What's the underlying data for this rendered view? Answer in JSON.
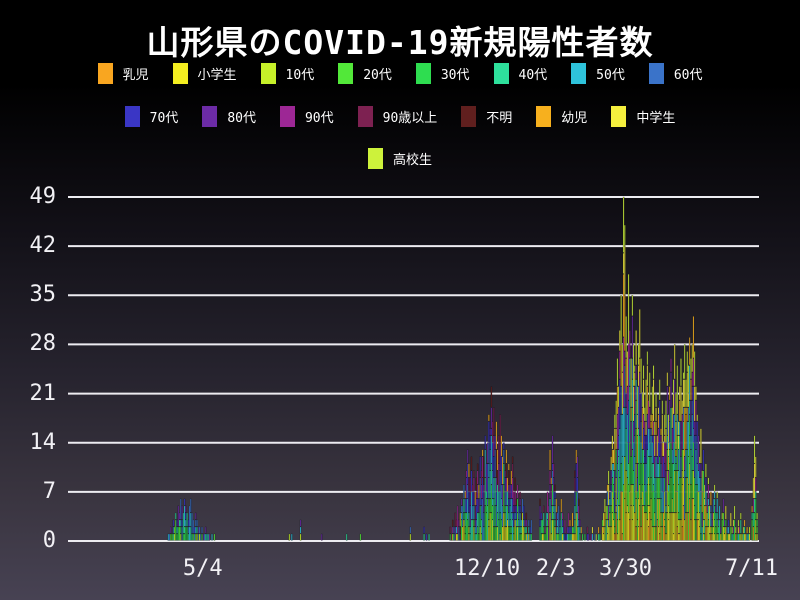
{
  "title": "山形県のCOVID-19新規陽性者数",
  "legend": {
    "rows": [
      [
        {
          "label": "乳児",
          "color": "#F9A620"
        },
        {
          "label": "小学生",
          "color": "#F4EE20"
        },
        {
          "label": "10代",
          "color": "#C6F029"
        },
        {
          "label": "20代",
          "color": "#52E839"
        },
        {
          "label": "30代",
          "color": "#2EDD50"
        },
        {
          "label": "40代",
          "color": "#2EE09C"
        },
        {
          "label": "50代",
          "color": "#2EC3DB"
        },
        {
          "label": "60代",
          "color": "#3A73C9"
        }
      ],
      [
        {
          "label": "70代",
          "color": "#3A36C5"
        },
        {
          "label": "80代",
          "color": "#6C2BA6"
        },
        {
          "label": "90代",
          "color": "#9D2795"
        },
        {
          "label": "90歳以上",
          "color": "#7D2151"
        },
        {
          "label": "不明",
          "color": "#601F1E"
        },
        {
          "label": "幼児",
          "color": "#F7B01E"
        },
        {
          "label": "中学生",
          "color": "#F5EF3E"
        }
      ],
      [
        {
          "label": "高校生",
          "color": "#CDF23B"
        }
      ]
    ]
  },
  "chart_data": {
    "type": "bar",
    "stacked": true,
    "title": "山形県のCOVID-19新規陽性者数",
    "xlabel": "",
    "ylabel": "",
    "grid": true,
    "legend_position": "top",
    "yticks": [
      0,
      7,
      14,
      21,
      28,
      35,
      42,
      49
    ],
    "ylim": [
      0,
      49
    ],
    "categories_are_stack_series": [
      "乳児",
      "小学生",
      "10代",
      "20代",
      "30代",
      "40代",
      "50代",
      "60代",
      "70代",
      "80代",
      "90代",
      "90歳以上",
      "不明",
      "幼児",
      "中学生",
      "高校生"
    ],
    "x_axis": {
      "unit": "day",
      "days_total": 554,
      "tick_labels": [
        "5/4",
        "12/10",
        "2/3",
        "3/30",
        "7/11"
      ],
      "tick_day_index": [
        108,
        336,
        391,
        447,
        548
      ]
    },
    "daily_total_clusters": [
      {
        "start_day": 80,
        "values": [
          1,
          1,
          2,
          1,
          3,
          2,
          4,
          3,
          5,
          4,
          6,
          5,
          4,
          6,
          5,
          4,
          3,
          5,
          6,
          4,
          3,
          2,
          4,
          3,
          2,
          2,
          1,
          2,
          1,
          1,
          2,
          1,
          1,
          1,
          0,
          1,
          0,
          1
        ]
      },
      {
        "start_day": 177,
        "values": [
          1,
          0,
          1
        ]
      },
      {
        "start_day": 186,
        "values": [
          3
        ]
      },
      {
        "start_day": 203,
        "values": [
          1
        ]
      },
      {
        "start_day": 223,
        "values": [
          1
        ]
      },
      {
        "start_day": 234,
        "values": [
          1
        ]
      },
      {
        "start_day": 274,
        "values": [
          2
        ]
      },
      {
        "start_day": 285,
        "values": [
          2,
          0,
          1,
          0,
          1
        ]
      },
      {
        "start_day": 306,
        "values": [
          2,
          1,
          3,
          2,
          4,
          3,
          5,
          3,
          4,
          6,
          5,
          8,
          7,
          10,
          13,
          11,
          9,
          12,
          8,
          10,
          7,
          9,
          11,
          8,
          12,
          10,
          13,
          12,
          15,
          11,
          14,
          18,
          16,
          22,
          17,
          19,
          15,
          17,
          13,
          15,
          18,
          15,
          12,
          14,
          10,
          13,
          9,
          11,
          8,
          10,
          12,
          7,
          9,
          6,
          8,
          5,
          7,
          4,
          6,
          5,
          3,
          4,
          2,
          3,
          2,
          3
        ]
      },
      {
        "start_day": 378,
        "values": [
          6,
          4,
          3,
          5,
          2,
          4,
          7,
          5,
          13,
          9,
          15,
          11,
          8,
          6,
          4,
          5,
          3,
          6,
          4,
          2,
          3,
          1,
          2,
          4,
          3,
          2,
          4,
          2,
          10,
          13,
          12,
          6,
          3,
          2,
          1
        ]
      },
      {
        "start_day": 414,
        "values": [
          1,
          0,
          2,
          1,
          0,
          1,
          2,
          0,
          1,
          1,
          0,
          2,
          1
        ]
      },
      {
        "start_day": 428,
        "values": [
          3,
          4,
          6,
          5,
          8,
          10,
          7,
          12,
          15,
          13,
          18,
          20,
          26,
          22,
          30,
          35,
          28,
          49,
          45,
          32,
          27,
          38,
          30,
          26,
          35,
          28,
          25,
          30,
          22,
          28,
          33,
          26,
          21,
          25,
          19,
          23,
          27,
          20,
          24,
          18,
          22,
          25,
          17,
          21,
          15,
          19,
          23,
          16,
          20,
          14,
          18
        ]
      },
      {
        "start_day": 479,
        "values": [
          20,
          24,
          18,
          22,
          26,
          19,
          23,
          28,
          21,
          25,
          17,
          22,
          26,
          20,
          24,
          28,
          23,
          27,
          25,
          29,
          26,
          28,
          32,
          27,
          22,
          18,
          15,
          12,
          16,
          10,
          13,
          8,
          11
        ]
      },
      {
        "start_day": 512,
        "values": [
          6,
          9,
          5,
          7,
          4,
          6,
          8,
          5,
          7,
          3,
          5,
          2,
          4,
          6,
          3,
          5,
          2,
          3,
          1,
          4,
          2,
          3,
          5,
          2,
          1,
          3,
          2,
          4,
          1,
          2,
          3,
          1,
          2,
          1,
          2
        ]
      },
      {
        "start_day": 548,
        "values": [
          5,
          9,
          15,
          12,
          4
        ]
      }
    ]
  }
}
